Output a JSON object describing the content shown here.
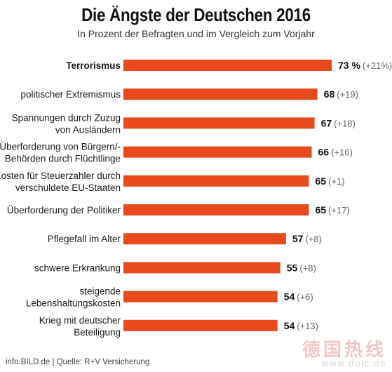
{
  "header": {
    "title": "Die Ängste der Deutschen 2016",
    "subtitle": "In Prozent der Befragten und im Vergleich zum Vorjahr"
  },
  "footer": {
    "source": "info.BILD.de | Quelle: R+V Versicherung"
  },
  "watermark": {
    "text": "德国热线",
    "url": "www.dolc.de"
  },
  "colors": {
    "bar": "#e8491d"
  },
  "chart_data": {
    "type": "bar",
    "orientation": "horizontal",
    "title": "Die Ängste der Deutschen 2016",
    "subtitle": "In Prozent der Befragten und im Vergleich zum Vorjahr",
    "xlim": [
      0,
      73
    ],
    "categories": [
      [
        "Terrorismus"
      ],
      [
        "politischer Extremismus"
      ],
      [
        "Spannungen durch Zuzug",
        "von Ausländern"
      ],
      [
        "Überforderung von Bürgern/-",
        "Behörden durch Flüchtlinge"
      ],
      [
        "Kosten für Steuerzahler durch",
        "verschuldete EU-Staaten"
      ],
      [
        "Überforderung der Politiker"
      ],
      [
        "Pflegefall im Alter"
      ],
      [
        "schwere Erkrankung"
      ],
      [
        "steigende",
        "Lebenshaltungskosten"
      ],
      [
        "Krieg mit deutscher",
        "Beteiligung"
      ]
    ],
    "values": [
      73,
      68,
      67,
      66,
      65,
      65,
      57,
      55,
      54,
      54
    ],
    "value_labels": [
      "73 %",
      "68",
      "67",
      "66",
      "65",
      "65",
      "57",
      "55",
      "54",
      "54"
    ],
    "changes": [
      "+21%",
      "+19",
      "+18",
      "+16",
      "+1",
      "+17",
      "+8",
      "+8",
      "+6",
      "+13"
    ]
  }
}
